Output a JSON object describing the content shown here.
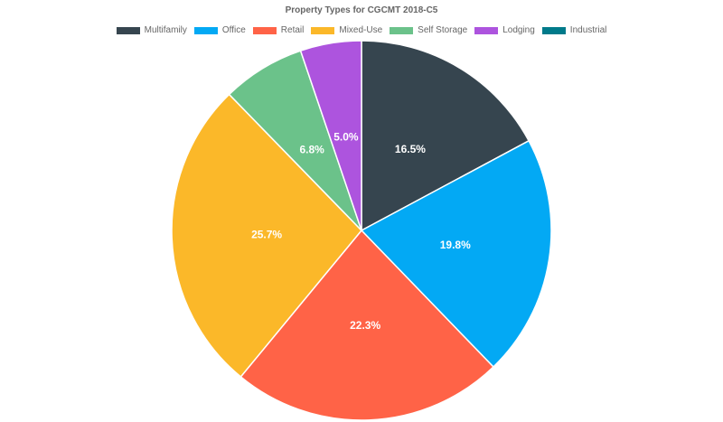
{
  "chart_data": {
    "type": "pie",
    "title": "Property Types for CGCMT 2018-C5",
    "legend_position": "top",
    "categories": [
      "Multifamily",
      "Office",
      "Retail",
      "Mixed-Use",
      "Self Storage",
      "Lodging",
      "Industrial"
    ],
    "values": [
      16.5,
      19.8,
      22.3,
      25.7,
      6.8,
      5.0,
      0
    ],
    "labels": [
      "16.5%",
      "19.8%",
      "22.3%",
      "25.7%",
      "6.8%",
      "5.0%",
      ""
    ],
    "colors": [
      "#36454f",
      "#03a9f4",
      "#ff6347",
      "#fbb829",
      "#6bc28a",
      "#ad54de",
      "#007a8a"
    ]
  }
}
